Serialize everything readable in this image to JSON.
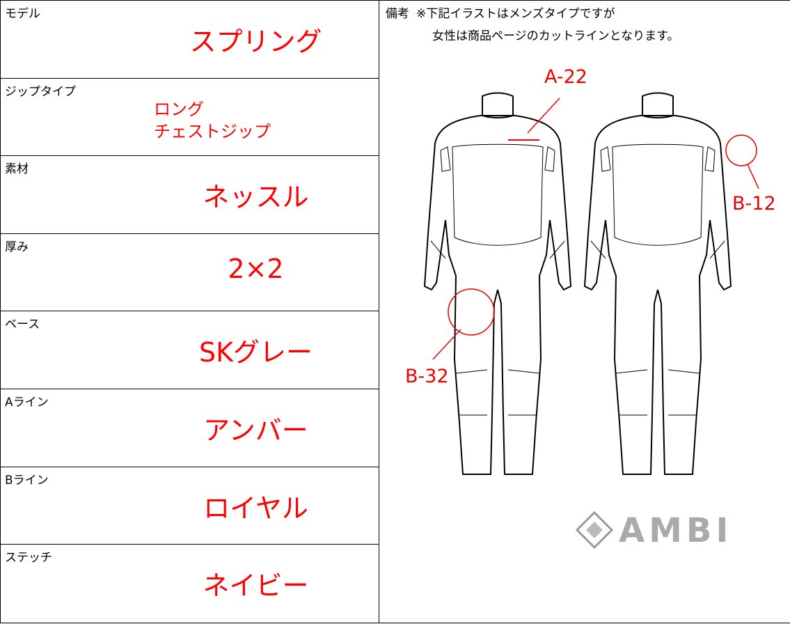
{
  "rows": [
    {
      "label": "モデル",
      "value": [
        "スプリング"
      ]
    },
    {
      "label": "ジップタイプ",
      "value": [
        "ロング",
        "チェストジップ"
      ]
    },
    {
      "label": "素材",
      "value": [
        "ネッスル"
      ]
    },
    {
      "label": "厚み",
      "value": [
        "2×2"
      ]
    },
    {
      "label": "ベース",
      "value": [
        "SKグレー"
      ]
    },
    {
      "label": "Aライン",
      "value": [
        "アンバー"
      ]
    },
    {
      "label": "Bライン",
      "value": [
        "ロイヤル"
      ]
    },
    {
      "label": "ステッチ",
      "value": [
        "ネイビー"
      ]
    }
  ],
  "remarks": {
    "label": "備考",
    "lines": [
      "※下記イラストはメンズタイプですが",
      "女性は商品ページのカットラインとなります。"
    ]
  },
  "callouts": [
    "A-22",
    "B-12",
    "B-32"
  ],
  "logo": "AMBI"
}
